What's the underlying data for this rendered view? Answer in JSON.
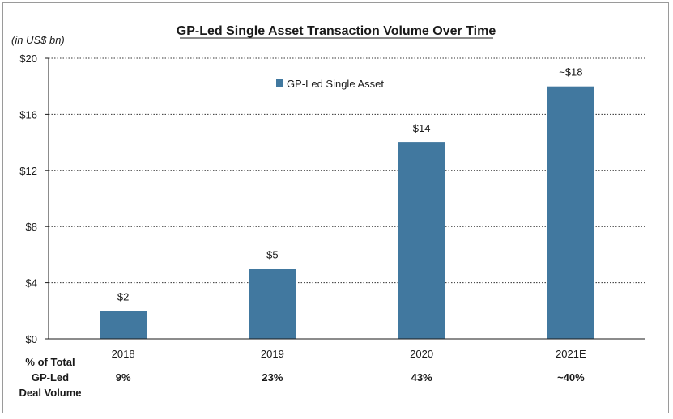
{
  "chart_data": {
    "type": "bar",
    "title": "GP-Led Single Asset Transaction Volume Over Time",
    "unit_label": "(in US$ bn)",
    "categories": [
      "2018",
      "2019",
      "2020",
      "2021E"
    ],
    "series": [
      {
        "name": "GP-Led Single Asset",
        "values": [
          2,
          5,
          14,
          18
        ],
        "labels": [
          "$2",
          "$5",
          "$14",
          "~$18"
        ],
        "color": "#41789f"
      }
    ],
    "ylim": [
      0,
      20
    ],
    "yticks": [
      0,
      4,
      8,
      12,
      16,
      20
    ],
    "ytick_labels": [
      "$0",
      "$4",
      "$8",
      "$12",
      "$16",
      "$20"
    ],
    "grid": "horizontal dotted",
    "legend_position": "top-center",
    "footer_table": {
      "row_label": [
        "% of Total",
        "GP-Led",
        "Deal Volume"
      ],
      "values": [
        "9%",
        "23%",
        "43%",
        "~40%"
      ]
    }
  }
}
